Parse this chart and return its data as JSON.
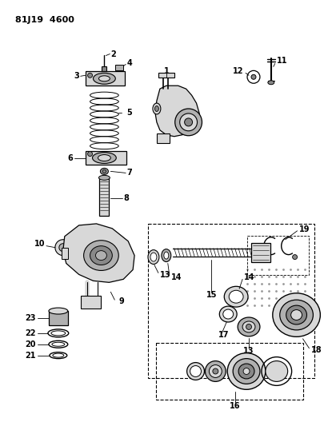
{
  "title": "81J19 4600",
  "bg": "#ffffff",
  "lc": "#000000",
  "gray_light": "#d8d8d8",
  "gray_mid": "#b0b0b0",
  "gray_dark": "#888888"
}
